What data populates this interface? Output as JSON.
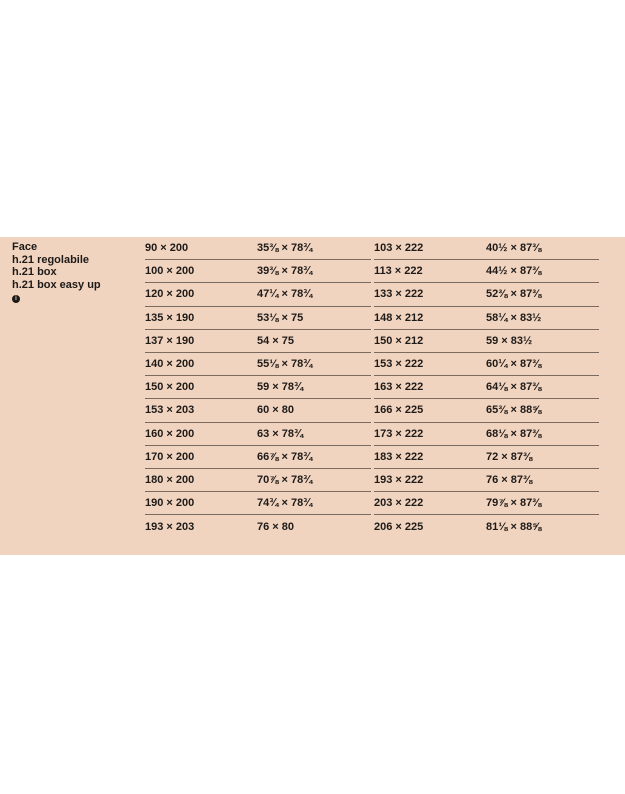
{
  "label": {
    "lines": [
      "Face",
      "h.21 regolabile",
      "h.21 box",
      "h.21 box easy up"
    ],
    "info_icon": "info-icon"
  },
  "left_table": [
    {
      "cm": "90 × 200",
      "inch": "35⅜ × 78¾"
    },
    {
      "cm": "100 × 200",
      "inch": "39⅜ × 78¾"
    },
    {
      "cm": "120 × 200",
      "inch": "47¼ × 78¾"
    },
    {
      "cm": "135 × 190",
      "inch": "53⅛ × 75"
    },
    {
      "cm": "137 × 190",
      "inch": "54 × 75"
    },
    {
      "cm": "140 × 200",
      "inch": "55⅛ × 78¾"
    },
    {
      "cm": "150 × 200",
      "inch": "59 × 78¾"
    },
    {
      "cm": "153 × 203",
      "inch": "60 × 80"
    },
    {
      "cm": "160 × 200",
      "inch": "63 × 78¾"
    },
    {
      "cm": "170 × 200",
      "inch": "66⅞ × 78¾"
    },
    {
      "cm": "180 × 200",
      "inch": "70⅞ × 78¾"
    },
    {
      "cm": "190 × 200",
      "inch": "74¾ × 78¾"
    },
    {
      "cm": "193 × 203",
      "inch": "76 × 80"
    }
  ],
  "right_table": [
    {
      "cm": "103 × 222",
      "inch": "40½ × 87⅜"
    },
    {
      "cm": "113 × 222",
      "inch": "44½ × 87⅜"
    },
    {
      "cm": "133 × 222",
      "inch": "52⅜ × 87⅜"
    },
    {
      "cm": "148 × 212",
      "inch": "58¼ × 83½"
    },
    {
      "cm": "150 × 212",
      "inch": "59 × 83½"
    },
    {
      "cm": "153 × 222",
      "inch": "60¼ × 87⅜"
    },
    {
      "cm": "163 × 222",
      "inch": "64⅛ × 87⅜"
    },
    {
      "cm": "166 × 225",
      "inch": "65⅜ × 88⅝"
    },
    {
      "cm": "173 × 222",
      "inch": "68⅛ × 87⅜"
    },
    {
      "cm": "183 × 222",
      "inch": "72 × 87⅜"
    },
    {
      "cm": "193 × 222",
      "inch": "76 × 87⅜"
    },
    {
      "cm": "203 × 222",
      "inch": "79⅞ × 87⅜"
    },
    {
      "cm": "206 × 225",
      "inch": "81⅛ × 88⅝"
    }
  ],
  "colors": {
    "background": "#f1d4c0",
    "text": "#1e1a17",
    "rule": "#7a6a60"
  }
}
